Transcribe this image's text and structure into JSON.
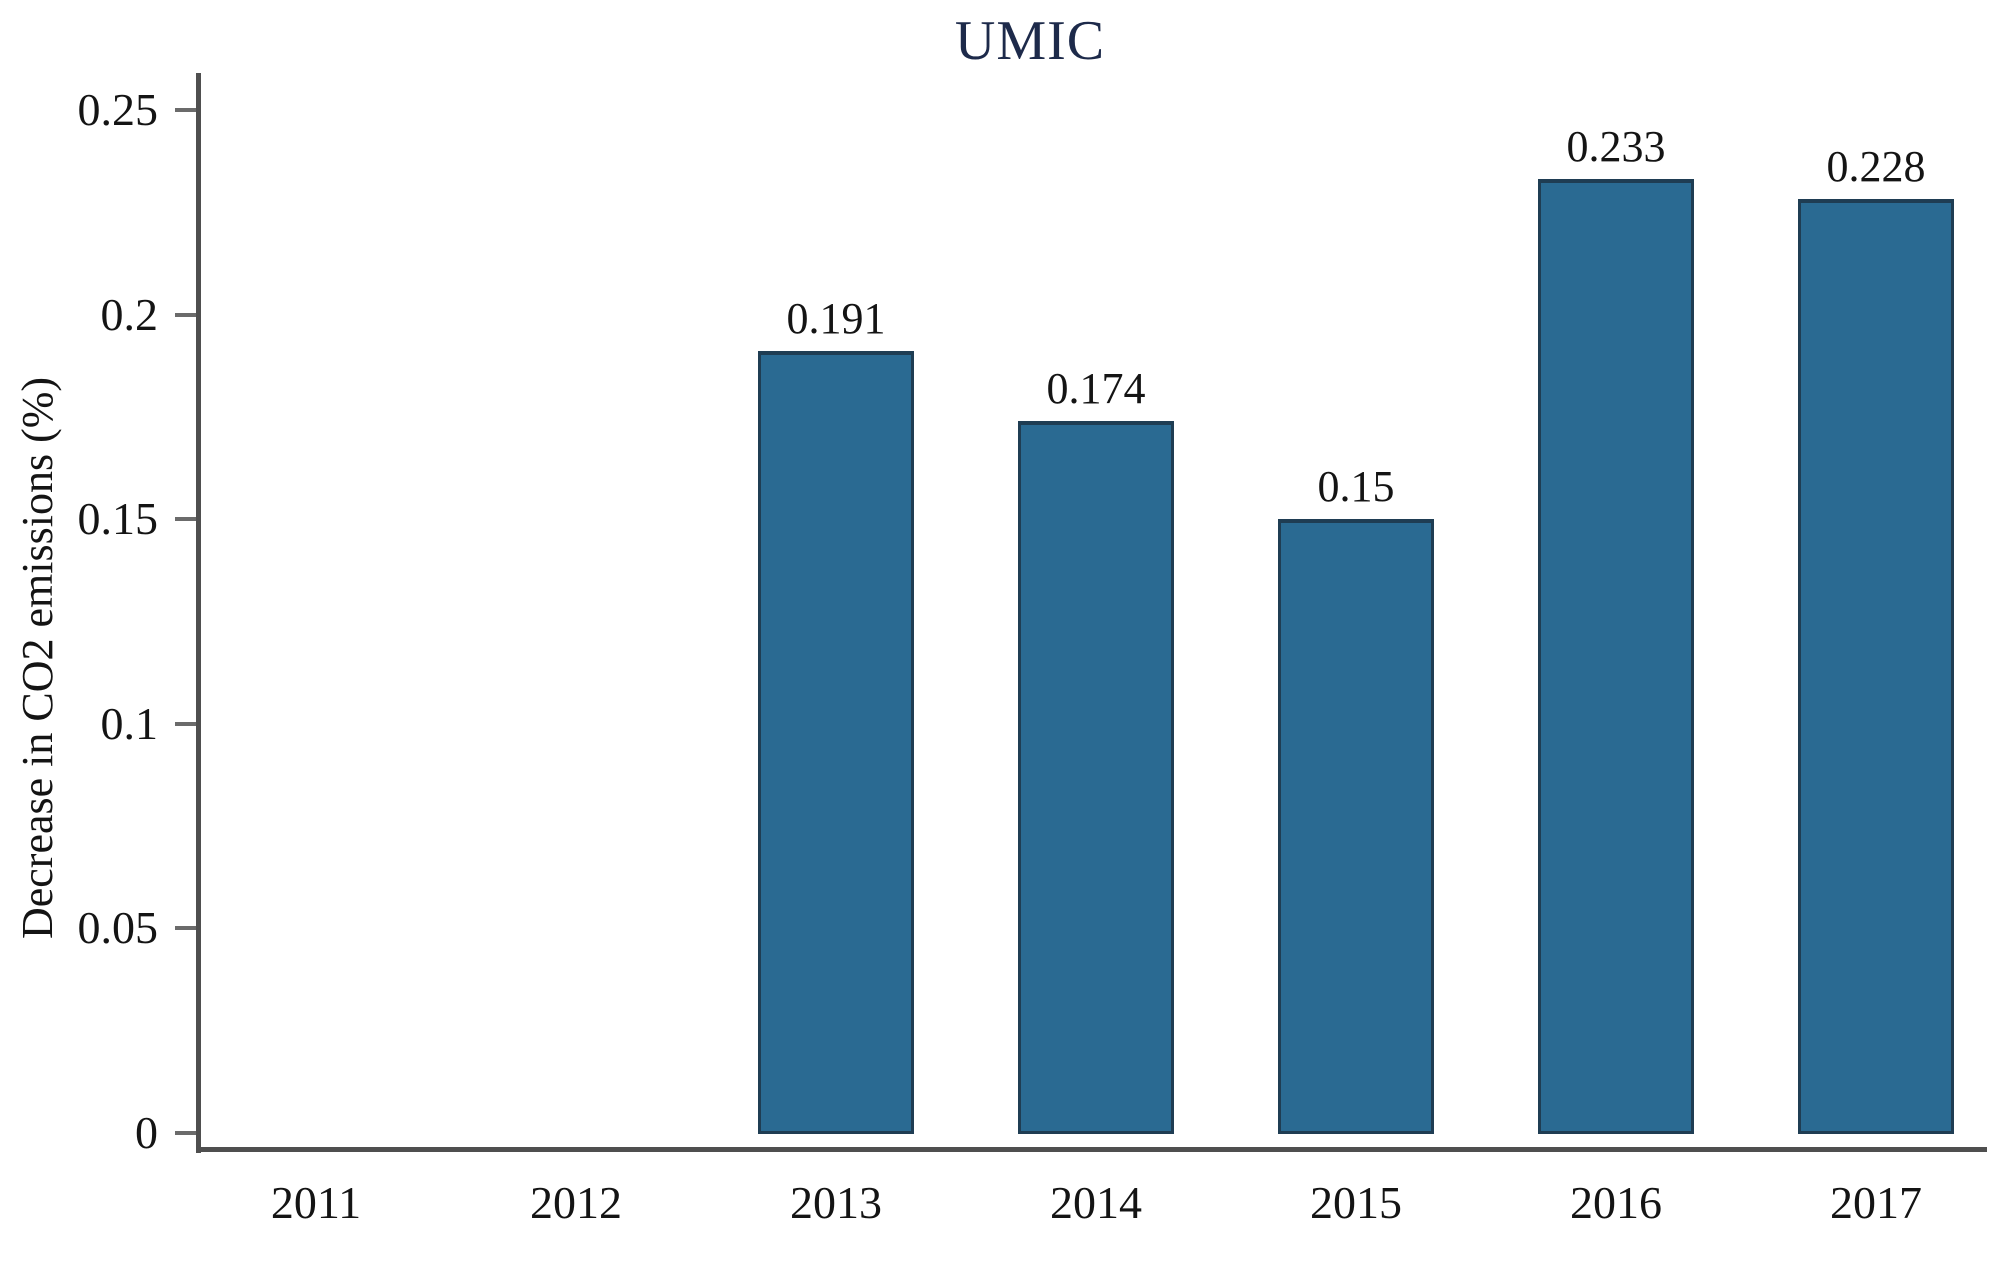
{
  "figure": {
    "background": "#ffffff"
  },
  "chart_data": {
    "type": "bar",
    "title": "UMIC",
    "categories": [
      "2011",
      "2012",
      "2013",
      "2014",
      "2015",
      "2016",
      "2017"
    ],
    "values": [
      null,
      null,
      0.191,
      0.174,
      0.15,
      0.233,
      0.228
    ],
    "bar_value_labels": [
      null,
      null,
      "0.191",
      "0.174",
      "0.15",
      "0.233",
      "0.228"
    ],
    "xlabel": "",
    "ylabel": "Decrease in CO2 emissions (%)",
    "ylim": [
      0,
      0.25
    ],
    "ytick_labels": [
      "0",
      "0.05",
      "0.1",
      "0.15",
      "0.2",
      "0.25"
    ],
    "ytick_values": [
      0,
      0.05,
      0.1,
      0.15,
      0.2,
      0.25
    ],
    "grid": false,
    "legend": null,
    "colors": {
      "bar_fill": "#2a6a92",
      "bar_edge": "#1f3d53",
      "title_text": "#1d2a4a",
      "label_text": "#141414",
      "axis_line": "#4f4f4f",
      "tick_mark": "#6b6b6b"
    }
  }
}
